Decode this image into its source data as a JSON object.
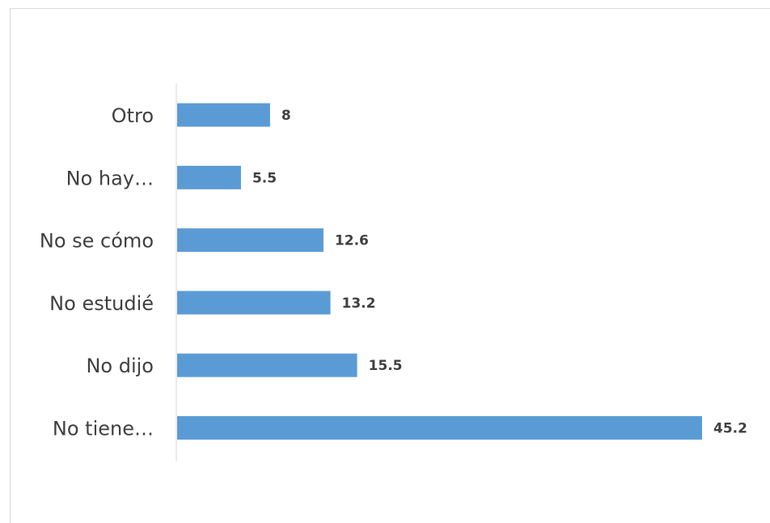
{
  "chart_data": {
    "type": "bar",
    "orientation": "horizontal",
    "categories": [
      "Otro",
      "No hay…",
      "No se cómo",
      "No estudié",
      "No dijo",
      "No tiene…"
    ],
    "values": [
      8,
      5.5,
      12.6,
      13.2,
      15.5,
      45.2
    ],
    "value_labels": [
      "8",
      "5.5",
      "12.6",
      "13.2",
      "15.5",
      "45.2"
    ],
    "title": "",
    "xlabel": "",
    "ylabel": "",
    "xlim": [
      0,
      45.2
    ],
    "grid": false,
    "legend": "none",
    "colors": {
      "bar": "#5b9bd5",
      "axis": "#d9d9d9",
      "text": "#404040"
    }
  }
}
